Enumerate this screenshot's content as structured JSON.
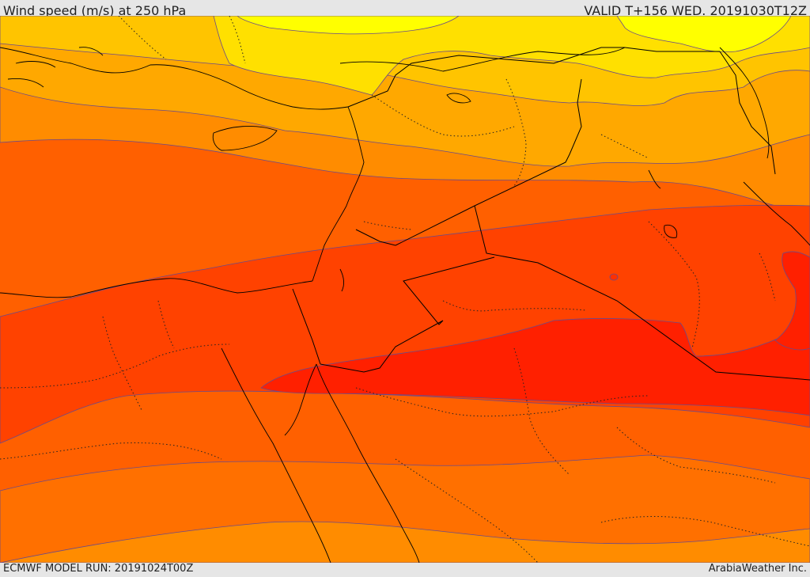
{
  "header": {
    "title": "Wind speed (m/s) at 250 hPa",
    "valid": "VALID T+156 WED. 20191030T12Z"
  },
  "footer": {
    "model_run": "ECMWF MODEL RUN: 20191024T00Z",
    "credit": "ArabiaWeather Inc."
  },
  "map": {
    "field": "wind-speed",
    "shading_colors": [
      "#ffff00",
      "#ffe000",
      "#ffbe00",
      "#ff9800",
      "#ff7000",
      "#ff4800",
      "#ff2400"
    ],
    "contour_color": "#6a4a8a",
    "border_color": "#000000"
  }
}
